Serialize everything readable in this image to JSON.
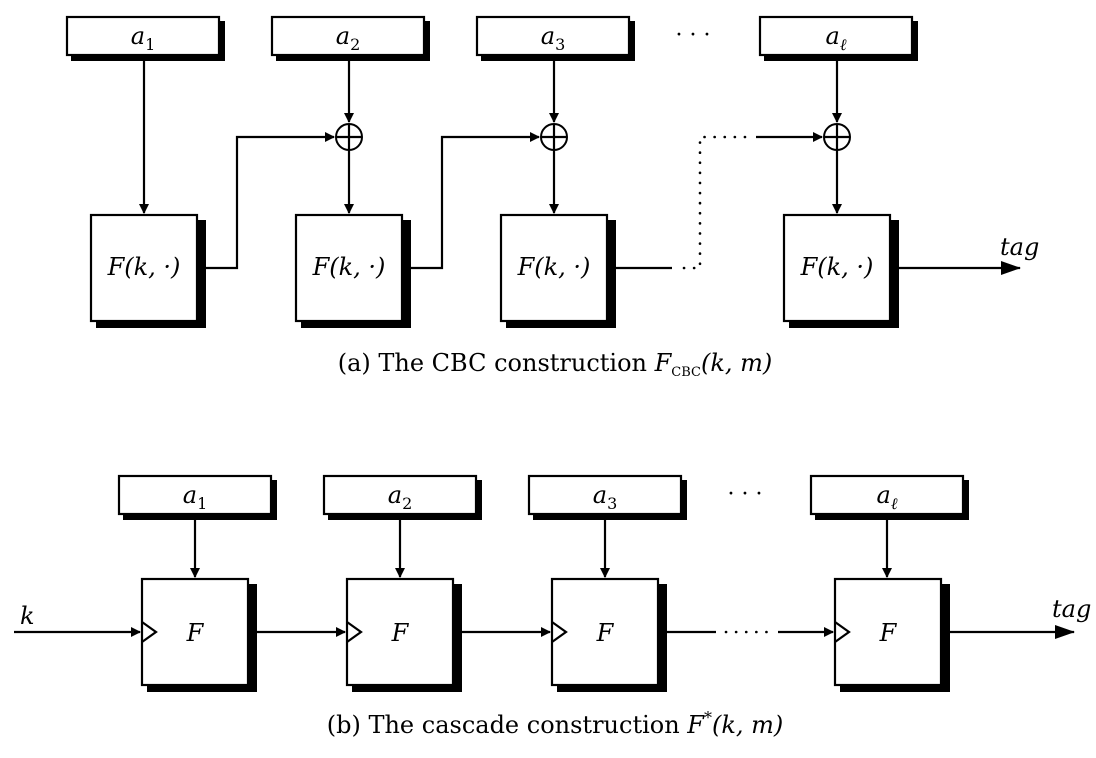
{
  "cbc": {
    "inputs": [
      {
        "base": "a",
        "sub": "1"
      },
      {
        "base": "a",
        "sub": "2"
      },
      {
        "base": "a",
        "sub": "3"
      },
      {
        "base": "a",
        "sub": "ℓ"
      }
    ],
    "ellipsis": "· · ·",
    "block_label": "F(k, ·)",
    "output_label": "tag",
    "caption": {
      "prefix": "(a) The CBC construction ",
      "func": "F",
      "sub": "CBC",
      "args": "(k, m)"
    }
  },
  "cascade": {
    "inputs": [
      {
        "base": "a",
        "sub": "1"
      },
      {
        "base": "a",
        "sub": "2"
      },
      {
        "base": "a",
        "sub": "3"
      },
      {
        "base": "a",
        "sub": "ℓ"
      }
    ],
    "ellipsis": "· · ·",
    "block_label": "F",
    "key_label": "k",
    "output_label": "tag",
    "caption": {
      "prefix": "(b) The cascade construction ",
      "func": "F",
      "sup": "*",
      "args": "(k, m)"
    }
  }
}
